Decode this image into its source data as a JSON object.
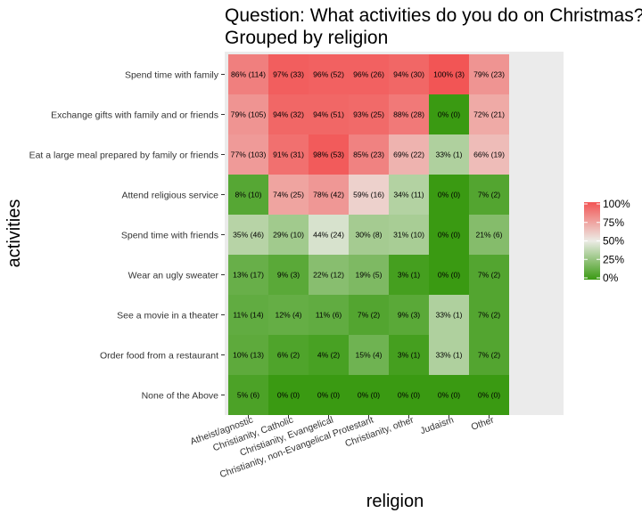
{
  "chart_data": {
    "type": "heatmap",
    "title_lines": [
      "Question: What activities do you do on Christmas?",
      "Grouped by religion"
    ],
    "xlabel": "religion",
    "ylabel": "activities",
    "x_categories": [
      "Atheist/agnostic",
      "Christianity, Catholic",
      "Christianity, Evangelical",
      "Christianity, non-Evangelical Protestant",
      "Christianity, other",
      "Judaism",
      "Other"
    ],
    "y_categories": [
      "Spend time with family",
      "Exchange gifts with family and or friends",
      "Eat a large meal prepared by family or friends",
      "Attend religious service",
      "Spend time with friends",
      "Wear an ugly sweater",
      "See a movie in a theater",
      "Order food from a restaurant",
      "None of the Above"
    ],
    "values": [
      [
        86,
        97,
        96,
        96,
        94,
        100,
        79
      ],
      [
        79,
        94,
        94,
        93,
        88,
        0,
        72
      ],
      [
        77,
        91,
        98,
        85,
        69,
        33,
        66
      ],
      [
        8,
        74,
        78,
        59,
        34,
        0,
        7
      ],
      [
        35,
        29,
        44,
        30,
        31,
        0,
        21
      ],
      [
        13,
        9,
        22,
        19,
        3,
        0,
        7
      ],
      [
        11,
        12,
        11,
        7,
        9,
        33,
        7
      ],
      [
        10,
        6,
        4,
        15,
        3,
        33,
        7
      ],
      [
        5,
        0,
        0,
        0,
        0,
        0,
        0
      ]
    ],
    "labels": [
      [
        "86% (114)",
        "97% (33)",
        "96% (52)",
        "96% (26)",
        "94% (30)",
        "100% (3)",
        "79% (23)"
      ],
      [
        "79% (105)",
        "94% (32)",
        "94% (51)",
        "93% (25)",
        "88% (28)",
        "0% (0)",
        "72% (21)"
      ],
      [
        "77% (103)",
        "91% (31)",
        "98% (53)",
        "85% (23)",
        "69% (22)",
        "33% (1)",
        "66% (19)"
      ],
      [
        "8% (10)",
        "74% (25)",
        "78% (42)",
        "59% (16)",
        "34% (11)",
        "0% (0)",
        "7% (2)"
      ],
      [
        "35% (46)",
        "29% (10)",
        "44% (24)",
        "30% (8)",
        "31% (10)",
        "0% (0)",
        "21% (6)"
      ],
      [
        "13% (17)",
        "9% (3)",
        "22% (12)",
        "19% (5)",
        "3% (1)",
        "0% (0)",
        "7% (2)"
      ],
      [
        "11% (14)",
        "12% (4)",
        "11% (6)",
        "7% (2)",
        "9% (3)",
        "33% (1)",
        "7% (2)"
      ],
      [
        "10% (13)",
        "6% (2)",
        "4% (2)",
        "15% (4)",
        "3% (1)",
        "33% (1)",
        "7% (2)"
      ],
      [
        "5% (6)",
        "0% (0)",
        "0% (0)",
        "0% (0)",
        "0% (0)",
        "0% (0)",
        "0% (0)"
      ]
    ],
    "color_scale": {
      "low": "#3a9a12",
      "mid": "#ecece6",
      "high": "#f25555",
      "domain": [
        0,
        100
      ]
    },
    "legend": {
      "position": "right",
      "ticks": [
        "100%",
        "75%",
        "50%",
        "25%",
        "0%"
      ]
    },
    "panel_background": "#ebebeb"
  }
}
